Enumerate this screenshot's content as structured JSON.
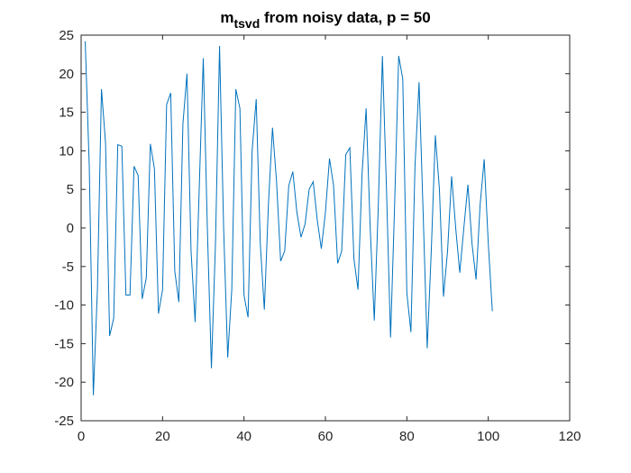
{
  "chart_data": {
    "type": "line",
    "title": "m",
    "title_subscript": "tsvd",
    "title_rest": " from noisy data, p = 50",
    "x": [
      1,
      2,
      3,
      4,
      5,
      6,
      7,
      8,
      9,
      10,
      11,
      12,
      13,
      14,
      15,
      16,
      17,
      18,
      19,
      20,
      21,
      22,
      23,
      24,
      25,
      26,
      27,
      28,
      29,
      30,
      31,
      32,
      33,
      34,
      35,
      36,
      37,
      38,
      39,
      40,
      41,
      42,
      43,
      44,
      45,
      46,
      47,
      48,
      49,
      50,
      51,
      52,
      53,
      54,
      55,
      56,
      57,
      58,
      59,
      60,
      61,
      62,
      63,
      64,
      65,
      66,
      67,
      68,
      69,
      70,
      71,
      72,
      73,
      74,
      75,
      76,
      77,
      78,
      79,
      80,
      81,
      82,
      83,
      84,
      85,
      86,
      87,
      88,
      89,
      90,
      91,
      92,
      93,
      94,
      95,
      96,
      97,
      98,
      99,
      100,
      101
    ],
    "series": [
      {
        "color": "#0072bd",
        "values": [
          24.2,
          8,
          -21.7,
          -8,
          18,
          11,
          -14,
          -11.7,
          10.8,
          10.6,
          -8.7,
          -8.7,
          8,
          6.8,
          -9.2,
          -6.5,
          10.9,
          7.7,
          -11.1,
          -8,
          16,
          17.5,
          -5.6,
          -9.6,
          13.5,
          20,
          -3,
          -12.2,
          5,
          22,
          0,
          -18.2,
          -2,
          23.6,
          0,
          -16.8,
          -8,
          18,
          15.5,
          -8.7,
          -11.6,
          10,
          16.7,
          -2,
          -10.6,
          3,
          13,
          6,
          -4.3,
          -3,
          5.5,
          7.3,
          2,
          -1.2,
          0.5,
          5,
          6,
          1,
          -2.7,
          2,
          9,
          5.5,
          -4.6,
          -3,
          9.5,
          10.4,
          -4,
          -8,
          7,
          15.5,
          0,
          -12,
          3,
          22.3,
          5,
          -14.2,
          3,
          22.3,
          19.3,
          -8.4,
          -13.5,
          8,
          18.9,
          2,
          -15.6,
          -3,
          12,
          5,
          -8.9,
          -3,
          6.7,
          0,
          -5.8,
          0,
          5.6,
          -2,
          -6.7,
          3,
          8.9,
          -2,
          -10.8
        ]
      }
    ],
    "xlim": [
      0,
      120
    ],
    "xticks": [
      0,
      20,
      40,
      60,
      80,
      100,
      120
    ],
    "ylim": [
      -25,
      25
    ],
    "yticks": [
      -25,
      -20,
      -15,
      -10,
      -5,
      0,
      5,
      10,
      15,
      20,
      25
    ]
  }
}
